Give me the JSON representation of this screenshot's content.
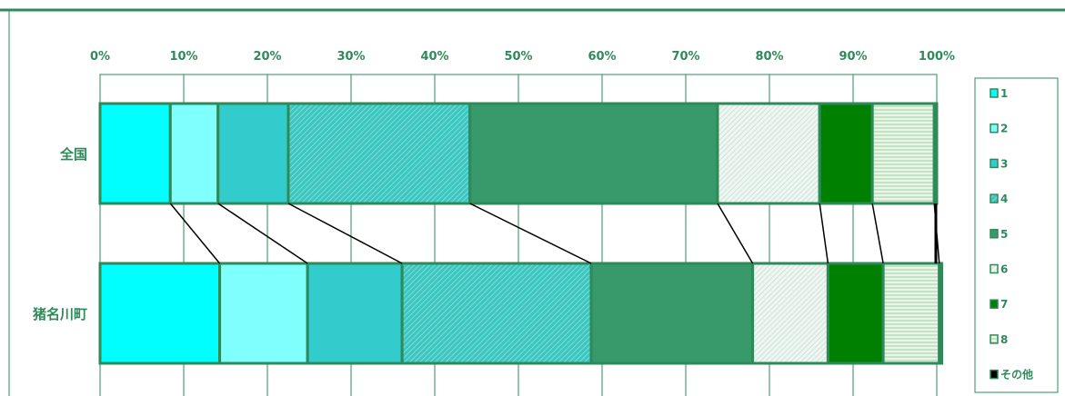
{
  "chart_data": {
    "type": "bar",
    "orientation": "horizontal",
    "stacked": "percent",
    "x_ticks": [
      "0%",
      "10%",
      "20%",
      "30%",
      "40%",
      "50%",
      "60%",
      "70%",
      "80%",
      "90%",
      "100%"
    ],
    "categories": [
      "全国",
      "猪名川町"
    ],
    "series": [
      {
        "name": "1",
        "values": [
          8.4,
          14.3
        ],
        "color": "#00ffff",
        "pattern": "solid"
      },
      {
        "name": "2",
        "values": [
          5.7,
          10.5
        ],
        "color": "#80ffff",
        "pattern": "solid"
      },
      {
        "name": "3",
        "values": [
          8.4,
          11.3
        ],
        "color": "#33cccc",
        "pattern": "solid"
      },
      {
        "name": "4",
        "values": [
          21.7,
          22.6
        ],
        "color": "#40c8c0",
        "pattern": "dense-stripes"
      },
      {
        "name": "5",
        "values": [
          29.6,
          19.3
        ],
        "color": "#38996a",
        "pattern": "solid"
      },
      {
        "name": "6",
        "values": [
          12.2,
          9.0
        ],
        "color": "#dcece4",
        "pattern": "light-stripes"
      },
      {
        "name": "7",
        "values": [
          6.3,
          6.6
        ],
        "color": "#008000",
        "pattern": "solid"
      },
      {
        "name": "8",
        "values": [
          7.4,
          6.7
        ],
        "color": "#c0e0c0",
        "pattern": "horizontal-lines"
      },
      {
        "name": "その他",
        "values": [
          0.3,
          0.3
        ],
        "color": "#000000",
        "pattern": "solid"
      }
    ],
    "xlim": [
      0,
      100
    ],
    "grid": true,
    "legend": "right",
    "connector_lines": true
  },
  "colors": {
    "frame": "#2f8a5a",
    "grid": "#2f8a5a",
    "text": "#2f8a5a",
    "connector": "#000000"
  }
}
